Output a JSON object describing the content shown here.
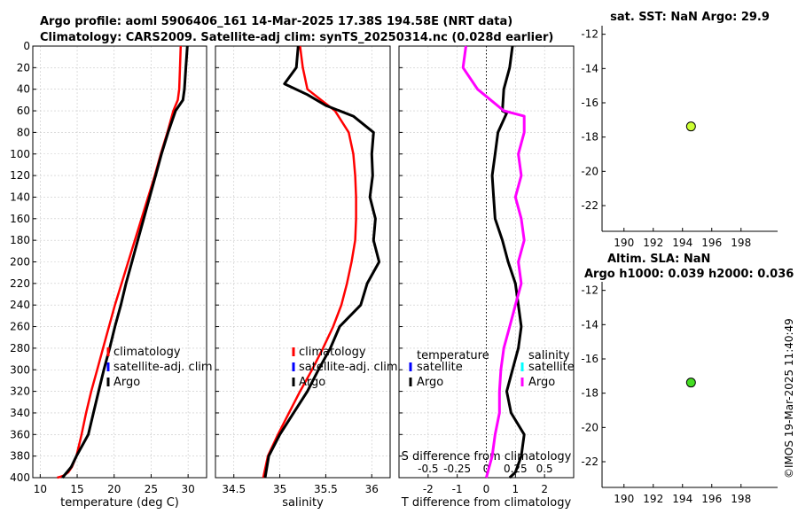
{
  "header": {
    "title_line1": "Argo profile: aoml 5906406_161 14-Mar-2025 17.38S 194.58E (NRT data)",
    "title_line2": "Climatology: CARS2009. Satellite-adj clim: synTS_20250314.nc (0.028d earlier)"
  },
  "side_text": "©IMOS 19-Mar-2025 11:40:49",
  "colors": {
    "red": "#ff0000",
    "blue": "#0000ff",
    "black": "#000000",
    "magenta": "#ff00ff",
    "cyan": "#00ffff",
    "dot_top": "#ccff33",
    "dot_bottom": "#44dd22"
  },
  "chart_data": [
    {
      "id": "temperature",
      "type": "line",
      "xlabel": "temperature (deg C)",
      "ylabel": "",
      "xlim": [
        9,
        32.5
      ],
      "ylim": [
        400,
        0
      ],
      "xticks": [
        10,
        15,
        20,
        25,
        30
      ],
      "yticks": [
        0,
        20,
        40,
        60,
        80,
        100,
        120,
        140,
        160,
        180,
        200,
        220,
        240,
        260,
        280,
        300,
        320,
        340,
        360,
        380,
        400
      ],
      "legend": [
        "climatology",
        "satellite-adj. clim",
        "Argo"
      ],
      "series": [
        {
          "name": "climatology",
          "color": "red",
          "x": [
            29.0,
            28.9,
            28.8,
            28.6,
            28.0,
            27.2,
            26.3,
            25.5,
            24.6,
            23.7,
            22.8,
            21.9,
            21.0,
            20.1,
            19.3,
            18.5,
            17.7,
            16.9,
            16.2,
            15.6,
            14.9,
            14.3,
            13.8,
            13.2,
            12.8,
            12.3
          ],
          "y": [
            0,
            20,
            40,
            50,
            60,
            80,
            100,
            120,
            140,
            160,
            180,
            200,
            220,
            240,
            260,
            280,
            300,
            320,
            340,
            360,
            380,
            390,
            395,
            398,
            399,
            400
          ]
        },
        {
          "name": "Argo",
          "color": "black",
          "x": [
            29.9,
            29.7,
            29.5,
            29.3,
            28.3,
            27.3,
            26.4,
            25.6,
            24.8,
            24.0,
            23.2,
            22.4,
            21.6,
            20.9,
            20.1,
            19.4,
            18.6,
            17.9,
            17.2,
            16.5,
            15.7,
            14.9,
            14.2,
            13.6,
            13.0
          ],
          "y": [
            0,
            20,
            40,
            50,
            60,
            80,
            100,
            120,
            140,
            160,
            180,
            200,
            220,
            240,
            260,
            280,
            300,
            320,
            340,
            360,
            370,
            380,
            390,
            395,
            400
          ]
        }
      ]
    },
    {
      "id": "salinity",
      "type": "line",
      "xlabel": "salinity",
      "ylabel": "",
      "xlim": [
        34.3,
        36.2
      ],
      "ylim": [
        400,
        0
      ],
      "xticks": [
        34.5,
        35,
        35.5,
        36
      ],
      "xtick_labels": [
        "34.5",
        "35",
        "35.5",
        "36"
      ],
      "legend": [
        "climatology",
        "satellite-adj. clim",
        "Argo"
      ],
      "series": [
        {
          "name": "climatology",
          "color": "red",
          "x": [
            35.22,
            35.25,
            35.3,
            35.45,
            35.6,
            35.75,
            35.8,
            35.82,
            35.83,
            35.83,
            35.82,
            35.78,
            35.73,
            35.67,
            35.58,
            35.47,
            35.35,
            35.22,
            35.1,
            34.98,
            34.87,
            34.82
          ],
          "y": [
            0,
            20,
            40,
            50,
            60,
            80,
            100,
            120,
            140,
            160,
            180,
            200,
            220,
            240,
            260,
            280,
            300,
            320,
            340,
            360,
            380,
            400
          ]
        },
        {
          "name": "Argo",
          "color": "black",
          "x": [
            35.2,
            35.18,
            35.05,
            35.3,
            35.5,
            35.8,
            36.02,
            36.0,
            36.01,
            35.98,
            36.04,
            36.02,
            36.08,
            35.95,
            35.88,
            35.65,
            35.55,
            35.42,
            35.3,
            35.15,
            35.0,
            34.88,
            34.84
          ],
          "y": [
            0,
            20,
            35,
            45,
            55,
            65,
            80,
            100,
            120,
            140,
            160,
            180,
            200,
            220,
            240,
            260,
            280,
            300,
            320,
            340,
            360,
            380,
            400
          ]
        }
      ]
    },
    {
      "id": "differences",
      "type": "line",
      "xlabel": "T difference from climatology",
      "xlabel_top": "S difference from climatology",
      "ylabel": "",
      "xlim": [
        -3,
        3
      ],
      "ylim": [
        400,
        0
      ],
      "xticks": [
        -2,
        -1,
        0,
        1,
        2
      ],
      "xtick_labels": [
        "-2",
        "-1",
        "0",
        "1",
        "2"
      ],
      "s_xticks": [
        -0.5,
        -0.25,
        0,
        0.25,
        0.5
      ],
      "s_xtick_labels": [
        "-0.5",
        "-0.25",
        "0",
        "0.25",
        "0.5"
      ],
      "legend_left_title": "temperature",
      "legend_right_title": "salinity",
      "legend": [
        "satellite",
        "Argo",
        "satellite",
        "Argo"
      ],
      "series": [
        {
          "name": "T Argo",
          "color": "black",
          "x": [
            0.9,
            0.8,
            0.6,
            0.55,
            0.7,
            0.4,
            0.3,
            0.2,
            0.25,
            0.3,
            0.55,
            0.75,
            1.0,
            1.1,
            1.2,
            1.1,
            0.9,
            0.7,
            0.85,
            1.3,
            1.2,
            1.0,
            0.8
          ],
          "y": [
            0,
            20,
            40,
            60,
            62,
            80,
            100,
            120,
            140,
            160,
            180,
            200,
            220,
            240,
            260,
            280,
            300,
            320,
            340,
            360,
            380,
            395,
            400
          ]
        },
        {
          "name": "S Argo",
          "color": "magenta",
          "x": [
            -0.7,
            -0.8,
            -0.3,
            0.6,
            1.3,
            1.3,
            1.1,
            1.2,
            1.0,
            1.2,
            1.3,
            1.1,
            1.2,
            1.0,
            0.8,
            0.6,
            0.5,
            0.45,
            0.45,
            0.3,
            0.2,
            0.05,
            0.0
          ],
          "y": [
            0,
            20,
            40,
            60,
            65,
            80,
            100,
            120,
            140,
            160,
            180,
            200,
            220,
            240,
            260,
            280,
            300,
            320,
            340,
            360,
            380,
            395,
            400
          ]
        }
      ]
    },
    {
      "id": "map_sst",
      "type": "scatter",
      "title": "sat. SST: NaN Argo: 29.9",
      "xlim": [
        188.5,
        200.5
      ],
      "ylim": [
        -23.5,
        -11.5
      ],
      "xticks": [
        190,
        192,
        194,
        196,
        198
      ],
      "yticks": [
        -12,
        -14,
        -16,
        -18,
        -20,
        -22
      ],
      "points": [
        {
          "x": 194.58,
          "y": -17.38
        }
      ]
    },
    {
      "id": "map_sla",
      "type": "scatter",
      "title1": "Altim. SLA: NaN",
      "title2": "Argo h1000: 0.039 h2000: 0.036",
      "xlim": [
        188.5,
        200.5
      ],
      "ylim": [
        -23.5,
        -11.5
      ],
      "xticks": [
        190,
        192,
        194,
        196,
        198
      ],
      "yticks": [
        -12,
        -14,
        -16,
        -18,
        -20,
        -22
      ],
      "points": [
        {
          "x": 194.58,
          "y": -17.38
        }
      ]
    }
  ]
}
